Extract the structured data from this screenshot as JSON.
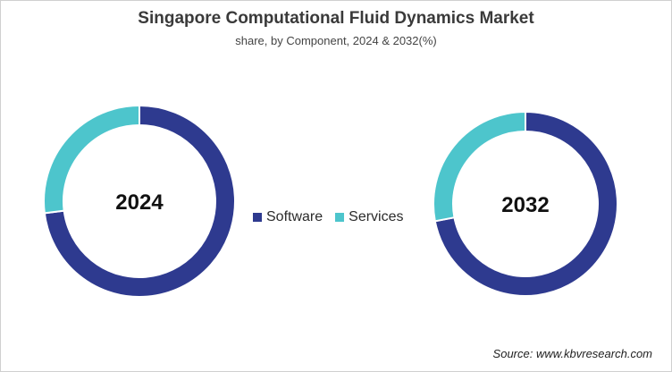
{
  "title": "Singapore Computational  Fluid Dynamics Market",
  "subtitle": "share, by Component, 2024 & 2032(%)",
  "source": "Source: www.kbvresearch.com",
  "colors": {
    "Software": "#2e3a8f",
    "Services": "#4dc5cc",
    "background": "#ffffff"
  },
  "legend": [
    {
      "label": "Software"
    },
    {
      "label": "Services"
    }
  ],
  "chart_data": [
    {
      "type": "pie",
      "variant": "donut",
      "center_label": "2024",
      "categories": [
        "Software",
        "Services"
      ],
      "values": [
        73,
        27
      ]
    },
    {
      "type": "pie",
      "variant": "donut",
      "center_label": "2032",
      "categories": [
        "Software",
        "Services"
      ],
      "values": [
        72,
        28
      ]
    }
  ]
}
